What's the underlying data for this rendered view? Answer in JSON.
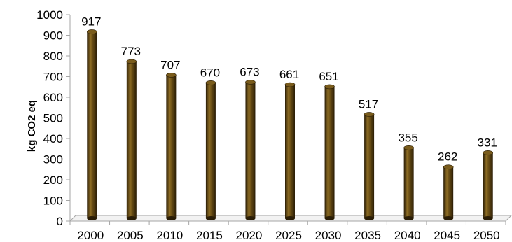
{
  "chart_data": {
    "type": "bar",
    "categories": [
      "2000",
      "2005",
      "2010",
      "2015",
      "2020",
      "2025",
      "2030",
      "2035",
      "2040",
      "2045",
      "2050"
    ],
    "values": [
      917,
      773,
      707,
      670,
      673,
      661,
      651,
      517,
      355,
      262,
      331
    ],
    "data_labels": [
      "917",
      "773",
      "707",
      "670",
      "673",
      "661",
      "651",
      "517",
      "355",
      "262",
      "331"
    ],
    "title": "",
    "xlabel": "",
    "ylabel": "kg CO2 eq",
    "ylim": [
      0,
      1000
    ],
    "yticks": [
      "0",
      "100",
      "200",
      "300",
      "400",
      "500",
      "600",
      "700",
      "800",
      "900",
      "1000"
    ],
    "grid": false,
    "legend": "none",
    "bar_style": "3d-cylinder",
    "colors": {
      "bar_dark": "#2a1d06",
      "bar_mid": "#6b4f15",
      "bar_light": "#8e6d24",
      "bar_top": "#7a5c1c",
      "axis": "#a6a6a6"
    }
  }
}
